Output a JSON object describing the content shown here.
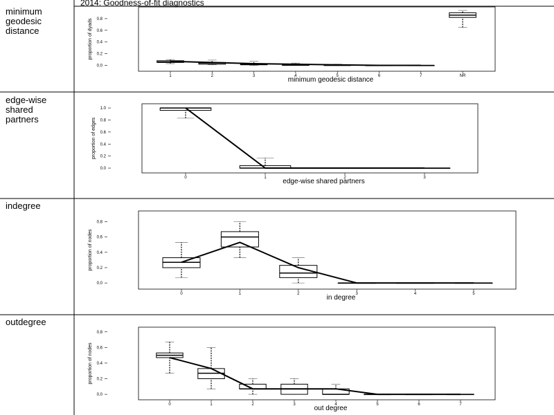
{
  "title": "2014: Goodness-of-fit diagnostics",
  "chart_data": [
    {
      "type": "boxplot",
      "row_label": "minimum geodesic distance",
      "ylabel": "proportion of dyads",
      "xlabel": "minimum geodesic distance",
      "categories": [
        "1",
        "2",
        "3",
        "4",
        "5",
        "6",
        "7",
        "NR"
      ],
      "whisker_low": [
        0.03,
        0.01,
        0,
        0,
        0,
        0,
        0,
        0.65
      ],
      "q1": [
        0.05,
        0.02,
        0.01,
        0,
        0,
        0,
        0,
        0.82
      ],
      "median": [
        0.06,
        0.04,
        0.02,
        0.01,
        0,
        0,
        0,
        0.86
      ],
      "q3": [
        0.08,
        0.05,
        0.03,
        0.01,
        0.005,
        0,
        0,
        0.9
      ],
      "whisker_high": [
        0.1,
        0.09,
        0.07,
        0.04,
        0.02,
        0,
        0,
        0.94
      ],
      "observed": [
        0.07,
        0.05,
        0.03,
        0.02,
        0.01,
        0,
        0,
        null
      ],
      "ylim": [
        -0.1,
        1.0
      ],
      "yticks": [
        {
          "value": 0,
          "label": "0.0"
        },
        0.2,
        0.4,
        0.6,
        0.8
      ]
    },
    {
      "type": "boxplot",
      "row_label": "edge-wise shared partners",
      "ylabel": "proportion of edges",
      "xlabel": "edge-wise shared partners",
      "categories": [
        "0",
        "1",
        "2",
        "3"
      ],
      "whisker_low": [
        0.83,
        0,
        0,
        0
      ],
      "q1": [
        0.96,
        0,
        0,
        0
      ],
      "median": [
        1,
        0,
        0,
        0
      ],
      "q3": [
        1,
        0.04,
        0,
        0
      ],
      "whisker_high": [
        1,
        0.17,
        0,
        0
      ],
      "observed": [
        1,
        0,
        0,
        0
      ],
      "ylim": [
        -0.08,
        1.07
      ],
      "yticks": [
        {
          "value": 0,
          "label": "0.0"
        },
        0.2,
        0.4,
        0.6,
        0.8,
        {
          "value": 1,
          "label": "1.0"
        }
      ]
    },
    {
      "type": "boxplot",
      "row_label": "indegree",
      "ylabel": "proportion of nodes",
      "xlabel": "in degree",
      "categories": [
        "0",
        "1",
        "2",
        "3",
        "4",
        "5"
      ],
      "whisker_low": [
        0.07,
        0.33,
        0,
        0,
        0,
        0
      ],
      "q1": [
        0.2,
        0.47,
        0.07,
        0,
        0,
        0
      ],
      "median": [
        0.27,
        0.6,
        0.13,
        0,
        0,
        0
      ],
      "q3": [
        0.33,
        0.67,
        0.23,
        0,
        0,
        0
      ],
      "whisker_high": [
        0.53,
        0.8,
        0.33,
        0,
        0,
        0
      ],
      "observed": [
        0.27,
        0.53,
        0.2,
        0,
        0,
        0
      ],
      "ylim": [
        -0.08,
        0.94
      ],
      "yticks": [
        {
          "value": 0,
          "label": "0.0"
        },
        0.2,
        0.4,
        0.6,
        0.8
      ]
    },
    {
      "type": "boxplot",
      "row_label": "outdegree",
      "ylabel": "proportion of nodes",
      "xlabel": "out degree",
      "categories": [
        "0",
        "1",
        "2",
        "3",
        "4",
        "5",
        "6",
        "7"
      ],
      "whisker_low": [
        0.27,
        0.07,
        0,
        0,
        0,
        0,
        0,
        0
      ],
      "q1": [
        0.47,
        0.2,
        0.07,
        0,
        0,
        0,
        0,
        0
      ],
      "median": [
        0.5,
        0.27,
        0.07,
        0.07,
        0,
        0,
        0,
        0
      ],
      "q3": [
        0.53,
        0.33,
        0.13,
        0.13,
        0.07,
        0,
        0,
        0
      ],
      "whisker_high": [
        0.67,
        0.6,
        0.2,
        0.2,
        0.13,
        0,
        0,
        0
      ],
      "observed": [
        0.47,
        0.33,
        0.07,
        0.07,
        0.07,
        0,
        0,
        0
      ],
      "ylim": [
        -0.07,
        0.86
      ],
      "yticks": [
        {
          "value": 0,
          "label": "0.0"
        },
        0.2,
        0.4,
        0.6,
        0.8
      ]
    }
  ]
}
